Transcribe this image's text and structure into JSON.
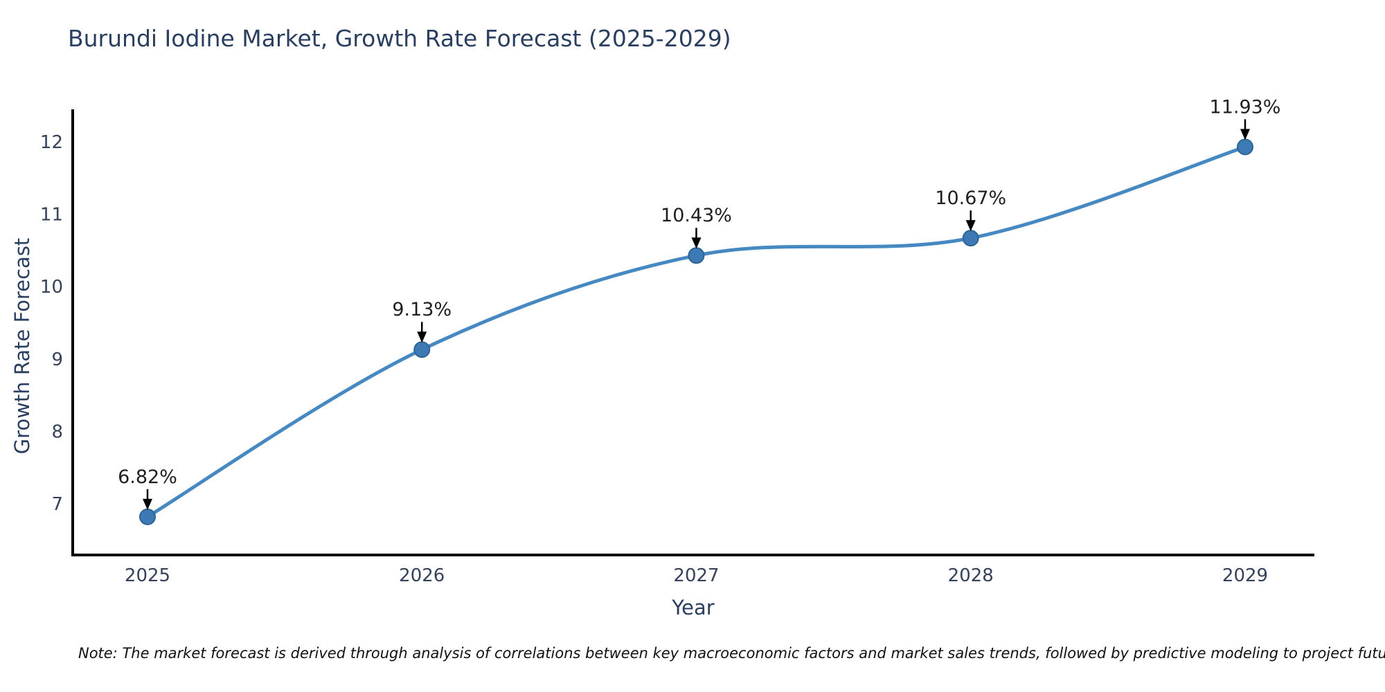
{
  "title": "Burundi Iodine Market, Growth Rate Forecast (2025-2029)",
  "note": "Note: The market forecast is derived through analysis of correlations between key macroeconomic factors and market sales trends, followed by predictive modeling to project future sales.",
  "chart_data": {
    "type": "line",
    "title": "Burundi Iodine Market, Growth Rate Forecast (2025-2029)",
    "x": [
      "2025",
      "2026",
      "2027",
      "2028",
      "2029"
    ],
    "values": [
      6.82,
      9.13,
      10.43,
      10.67,
      11.93
    ],
    "point_labels": [
      "6.82%",
      "9.13%",
      "10.43%",
      "10.67%",
      "11.93%"
    ],
    "xlabel": "Year",
    "ylabel": "Growth Rate Forecast",
    "yticks": [
      7,
      8,
      9,
      10,
      11,
      12
    ],
    "ylim": [
      6.3,
      12.45
    ],
    "grid": false,
    "legend": false,
    "smooth": true,
    "line_color": "#4689c2",
    "marker_color": "#3d7ab5",
    "marker_edge_color": "#2e6493",
    "annotation_color": "#000000",
    "axis_color": "#000000",
    "title_color": "#2a3f5f",
    "tick_color": "#36425a"
  }
}
